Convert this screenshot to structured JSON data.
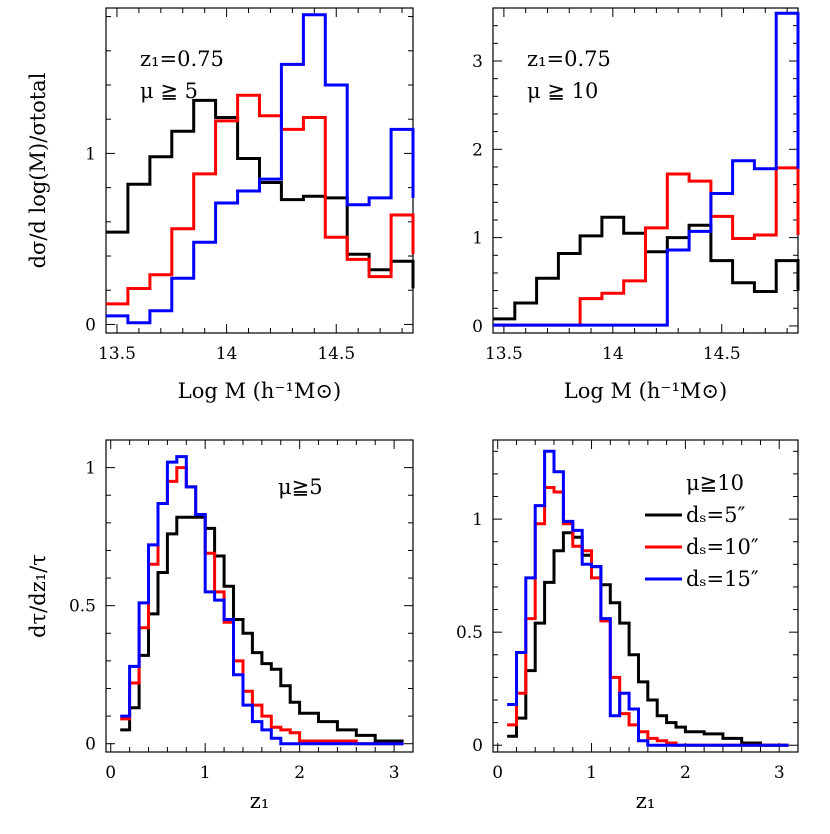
{
  "colors": {
    "black": "#000000",
    "red": "#ff0000",
    "blue": "#0000ff"
  },
  "chart_data": [
    {
      "id": "top-left",
      "type": "histogram-step",
      "annotation": [
        "z₁=0.75",
        "μ ≧ 5"
      ],
      "xlabel": "Log M (h⁻¹M⊙)",
      "ylabel": "dσ/d log(M)/σtotal",
      "xlim": [
        13.45,
        14.85
      ],
      "ylim": [
        -0.05,
        1.85
      ],
      "x_ticks": [
        13.5,
        14,
        14.5
      ],
      "x_ticklabels": [
        "13.5",
        "14",
        "14.5"
      ],
      "y_ticks": [
        0,
        1
      ],
      "y_ticklabels": [
        "0",
        "1"
      ],
      "bin_edges": [
        13.45,
        13.55,
        13.65,
        13.75,
        13.85,
        13.95,
        14.05,
        14.15,
        14.25,
        14.35,
        14.45,
        14.55,
        14.65,
        14.75,
        14.85
      ],
      "series": [
        {
          "color": "black",
          "values": [
            0.54,
            0.82,
            0.98,
            1.13,
            1.31,
            1.21,
            0.97,
            0.83,
            0.73,
            0.75,
            0.74,
            0.41,
            0.32,
            0.37,
            0.21
          ]
        },
        {
          "color": "red",
          "values": [
            0.12,
            0.21,
            0.29,
            0.56,
            0.88,
            1.19,
            1.34,
            1.22,
            1.14,
            1.21,
            0.51,
            0.38,
            0.28,
            0.64,
            0.41
          ]
        },
        {
          "color": "blue",
          "values": [
            0.05,
            0.01,
            0.08,
            0.27,
            0.48,
            0.71,
            0.78,
            0.85,
            1.52,
            1.81,
            1.4,
            0.7,
            0.74,
            1.14,
            0.74
          ]
        }
      ]
    },
    {
      "id": "top-right",
      "type": "histogram-step",
      "annotation": [
        "z₁=0.75",
        "μ ≧ 10"
      ],
      "xlabel": "Log M (h⁻¹M⊙)",
      "ylabel": "",
      "xlim": [
        13.45,
        14.85
      ],
      "ylim": [
        -0.08,
        3.6
      ],
      "x_ticks": [
        13.5,
        14,
        14.5
      ],
      "x_ticklabels": [
        "13.5",
        "14",
        "14.5"
      ],
      "y_ticks": [
        0,
        1,
        2,
        3
      ],
      "y_ticklabels": [
        "0",
        "1",
        "2",
        "3"
      ],
      "bin_edges": [
        13.45,
        13.55,
        13.65,
        13.75,
        13.85,
        13.95,
        14.05,
        14.15,
        14.25,
        14.35,
        14.45,
        14.55,
        14.65,
        14.75,
        14.85
      ],
      "series": [
        {
          "color": "black",
          "values": [
            0.08,
            0.26,
            0.54,
            0.82,
            1.02,
            1.23,
            1.05,
            0.84,
            1.0,
            1.14,
            0.74,
            0.49,
            0.39,
            0.74,
            0.4
          ]
        },
        {
          "color": "red",
          "values": [
            0.01,
            0.01,
            0.01,
            0.01,
            0.31,
            0.37,
            0.51,
            1.11,
            1.72,
            1.64,
            1.24,
            0.99,
            1.03,
            1.79,
            1.03
          ]
        },
        {
          "color": "blue",
          "values": [
            0.01,
            0.01,
            0.01,
            0.01,
            0.01,
            0.01,
            0.01,
            0.01,
            0.86,
            1.07,
            1.5,
            1.87,
            1.78,
            3.54,
            1.78
          ]
        }
      ]
    },
    {
      "id": "bottom-left",
      "type": "histogram-step",
      "annotation": [
        "μ≧5"
      ],
      "xlabel": "z₁",
      "ylabel": "dτ/dz₁/τ",
      "xlim": [
        -0.05,
        3.2
      ],
      "ylim": [
        -0.03,
        1.1
      ],
      "x_ticks": [
        0,
        1,
        2,
        3
      ],
      "x_ticklabels": [
        "0",
        "1",
        "2",
        "3"
      ],
      "y_ticks": [
        0,
        0.5,
        1
      ],
      "y_ticklabels": [
        "0",
        "0.5",
        "1"
      ],
      "bin_edges": [
        0.1,
        0.2,
        0.3,
        0.4,
        0.5,
        0.6,
        0.7,
        0.8,
        0.9,
        1.0,
        1.1,
        1.2,
        1.3,
        1.4,
        1.5,
        1.6,
        1.7,
        1.8,
        1.9,
        2.0,
        2.2,
        2.4,
        2.6,
        2.8,
        3.0,
        3.1
      ],
      "series": [
        {
          "name": "dₛ=5″",
          "color": "black",
          "values": [
            0.05,
            0.13,
            0.32,
            0.47,
            0.62,
            0.76,
            0.82,
            0.82,
            0.82,
            0.78,
            0.68,
            0.57,
            0.45,
            0.4,
            0.33,
            0.29,
            0.27,
            0.21,
            0.15,
            0.11,
            0.08,
            0.05,
            0.03,
            0.01,
            0.01
          ]
        },
        {
          "name": "dₛ=10″",
          "color": "red",
          "values": [
            0.09,
            0.22,
            0.42,
            0.65,
            0.87,
            0.95,
            1.0,
            0.93,
            0.83,
            0.69,
            0.55,
            0.44,
            0.3,
            0.19,
            0.14,
            0.1,
            0.06,
            0.05,
            0.04,
            0.01,
            0.01,
            0.01,
            0.0,
            0.0,
            0.0
          ]
        },
        {
          "name": "dₛ=15″",
          "color": "blue",
          "values": [
            0.1,
            0.28,
            0.51,
            0.72,
            0.87,
            1.02,
            1.04,
            0.93,
            0.83,
            0.55,
            0.52,
            0.45,
            0.25,
            0.14,
            0.08,
            0.05,
            0.02,
            0.0,
            0.0,
            0.0,
            0.0,
            0.0,
            0.0,
            0.0,
            0.0
          ]
        }
      ]
    },
    {
      "id": "bottom-right",
      "type": "histogram-step",
      "annotation": [
        "μ≧10"
      ],
      "xlabel": "z₁",
      "ylabel": "",
      "xlim": [
        -0.05,
        3.2
      ],
      "ylim": [
        -0.03,
        1.35
      ],
      "x_ticks": [
        0,
        1,
        2,
        3
      ],
      "x_ticklabels": [
        "0",
        "1",
        "2",
        "3"
      ],
      "y_ticks": [
        0,
        0.5,
        1
      ],
      "y_ticklabels": [
        "0",
        "0.5",
        "1"
      ],
      "legend": {
        "placement": "right"
      },
      "bin_edges": [
        0.1,
        0.2,
        0.3,
        0.4,
        0.5,
        0.6,
        0.7,
        0.8,
        0.9,
        1.0,
        1.1,
        1.2,
        1.3,
        1.4,
        1.5,
        1.6,
        1.7,
        1.8,
        1.9,
        2.0,
        2.2,
        2.4,
        2.6,
        2.8,
        3.0,
        3.1
      ],
      "series": [
        {
          "name": "dₛ=5″",
          "color": "black",
          "values": [
            0.04,
            0.12,
            0.33,
            0.54,
            0.72,
            0.86,
            0.94,
            0.92,
            0.84,
            0.79,
            0.71,
            0.63,
            0.54,
            0.4,
            0.28,
            0.2,
            0.13,
            0.1,
            0.08,
            0.06,
            0.05,
            0.03,
            0.01,
            0.0,
            0.0
          ]
        },
        {
          "name": "dₛ=10″",
          "color": "red",
          "values": [
            0.09,
            0.23,
            0.56,
            0.98,
            1.14,
            1.12,
            0.98,
            0.88,
            0.86,
            0.74,
            0.55,
            0.3,
            0.14,
            0.09,
            0.06,
            0.03,
            0.02,
            0.01,
            0.0,
            0.0,
            0.0,
            0.0,
            0.0,
            0.0,
            0.0
          ]
        },
        {
          "name": "dₛ=15″",
          "color": "blue",
          "values": [
            0.18,
            0.41,
            0.74,
            1.06,
            1.3,
            1.21,
            0.99,
            0.95,
            0.8,
            0.79,
            0.56,
            0.13,
            0.23,
            0.16,
            0.02,
            0.0,
            0.0,
            0.0,
            0.0,
            0.0,
            0.0,
            0.0,
            0.0,
            0.0,
            0.0
          ]
        }
      ]
    }
  ]
}
